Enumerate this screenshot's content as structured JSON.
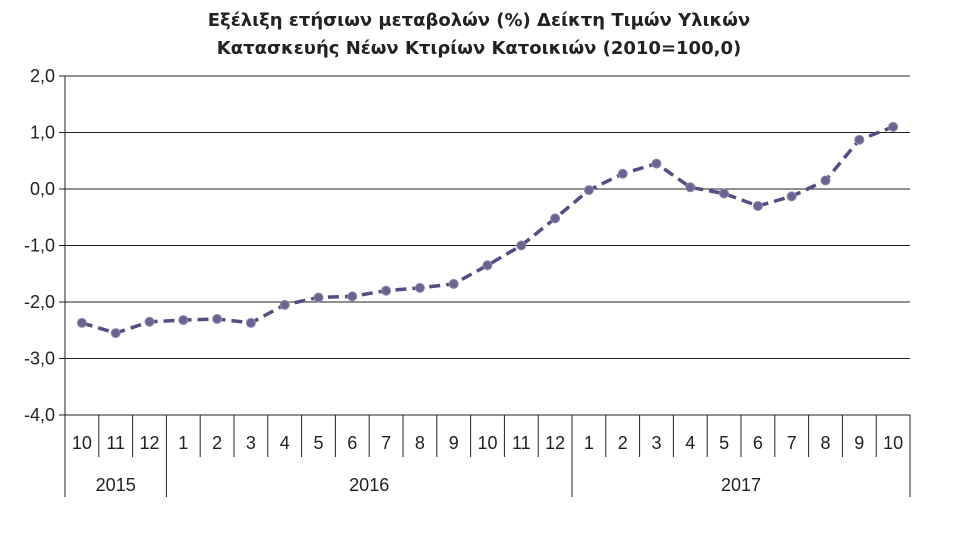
{
  "chart_data": {
    "type": "line",
    "title_line1": "Εξέλιξη ετήσιων μεταβολών (%) Δείκτη Τιμών Υλικών",
    "title_line2": "Κατασκευής Νέων Κτιρίων Κατοικιών (2010=100,0)",
    "categories": [
      "10",
      "11",
      "12",
      "1",
      "2",
      "3",
      "4",
      "5",
      "6",
      "7",
      "8",
      "9",
      "10",
      "11",
      "12",
      "1",
      "2",
      "3",
      "4",
      "5",
      "6",
      "7",
      "8",
      "9",
      "10"
    ],
    "year_groups": [
      {
        "label": "2015",
        "count": 3
      },
      {
        "label": "2016",
        "count": 12
      },
      {
        "label": "2017",
        "count": 10
      }
    ],
    "values": [
      -2.37,
      -2.55,
      -2.35,
      -2.32,
      -2.3,
      -2.37,
      -2.05,
      -1.92,
      -1.9,
      -1.8,
      -1.75,
      -1.68,
      -1.35,
      -1.0,
      -0.52,
      -0.02,
      0.27,
      0.45,
      0.03,
      -0.08,
      -0.3,
      -0.13,
      0.15,
      0.87,
      1.1
    ],
    "y_ticks": [
      2.0,
      1.0,
      0.0,
      -1.0,
      -2.0,
      -3.0,
      -4.0
    ],
    "y_tick_labels": [
      "2,0",
      "1,0",
      "0,0",
      "-1,0",
      "-2,0",
      "-3,0",
      "-4,0"
    ],
    "ylim": [
      -4,
      2
    ],
    "line_color": "#5b4a82",
    "marker_color": "#6b6490",
    "grid": true
  }
}
